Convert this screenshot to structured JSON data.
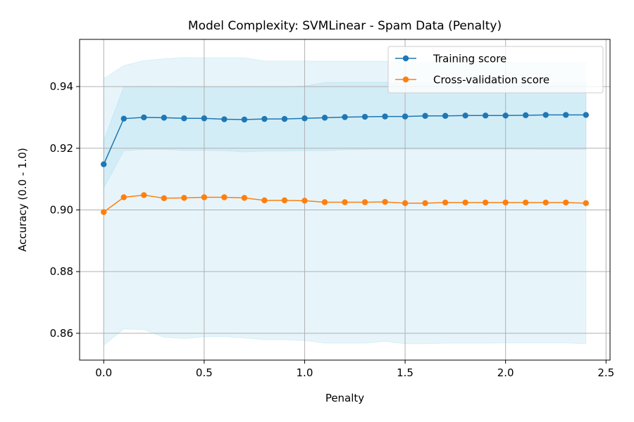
{
  "chart_data": {
    "type": "line",
    "title": "Model Complexity: SVMLinear - Spam Data (Penalty)",
    "xlabel": "Penalty",
    "ylabel": "Accuracy (0.0 - 1.0)",
    "xlim": [
      -0.12,
      2.52
    ],
    "ylim": [
      0.8513,
      0.9553
    ],
    "xticks": [
      0.0,
      0.5,
      1.0,
      1.5,
      2.0,
      2.5
    ],
    "xtick_labels": [
      "0.0",
      "0.5",
      "1.0",
      "1.5",
      "2.0",
      "2.5"
    ],
    "yticks": [
      0.86,
      0.88,
      0.9,
      0.92,
      0.94
    ],
    "ytick_labels": [
      "0.86",
      "0.88",
      "0.90",
      "0.92",
      "0.94"
    ],
    "grid": true,
    "legend_position": "top-right",
    "x": [
      0.0,
      0.1,
      0.2,
      0.3,
      0.4,
      0.5,
      0.6,
      0.7,
      0.8,
      0.9,
      1.0,
      1.1,
      1.2,
      1.3,
      1.4,
      1.5,
      1.6,
      1.7,
      1.8,
      1.9,
      2.0,
      2.1,
      2.2,
      2.3,
      2.4
    ],
    "series": [
      {
        "name": "Training score",
        "color": "#1f77b4",
        "band_color": "#87ceeb",
        "values": [
          0.9148,
          0.9296,
          0.93,
          0.9299,
          0.9297,
          0.9297,
          0.9294,
          0.9293,
          0.9295,
          0.9295,
          0.9297,
          0.9299,
          0.9301,
          0.9302,
          0.9303,
          0.9303,
          0.9305,
          0.9305,
          0.9306,
          0.9306,
          0.9306,
          0.9307,
          0.9308,
          0.9308,
          0.9308
        ],
        "band_upper": [
          0.9224,
          0.94,
          0.9401,
          0.94,
          0.9399,
          0.9398,
          0.9398,
          0.9398,
          0.9399,
          0.9399,
          0.9402,
          0.9413,
          0.9414,
          0.9414,
          0.9414,
          0.9413,
          0.9414,
          0.9414,
          0.9414,
          0.9414,
          0.9412,
          0.9411,
          0.9412,
          0.9412,
          0.9412
        ],
        "band_lower": [
          0.9071,
          0.9192,
          0.9196,
          0.9196,
          0.9193,
          0.9193,
          0.9192,
          0.9188,
          0.9191,
          0.9191,
          0.9192,
          0.9192,
          0.9195,
          0.9196,
          0.9197,
          0.9197,
          0.9197,
          0.9197,
          0.9197,
          0.9197,
          0.9197,
          0.9197,
          0.9196,
          0.9196,
          0.9196
        ]
      },
      {
        "name": "Cross-validation score",
        "color": "#ff7f0e",
        "band_color": "#87ceeb",
        "values": [
          0.8993,
          0.9041,
          0.9048,
          0.9038,
          0.9039,
          0.9041,
          0.9041,
          0.9039,
          0.9031,
          0.9031,
          0.903,
          0.9025,
          0.9025,
          0.9025,
          0.9026,
          0.9022,
          0.9022,
          0.9024,
          0.9024,
          0.9024,
          0.9024,
          0.9024,
          0.9024,
          0.9024,
          0.9022
        ],
        "band_upper": [
          0.9425,
          0.9468,
          0.9484,
          0.949,
          0.9494,
          0.9493,
          0.9493,
          0.9493,
          0.9483,
          0.9483,
          0.9483,
          0.9482,
          0.9482,
          0.9482,
          0.9482,
          0.9478,
          0.9478,
          0.948,
          0.948,
          0.948,
          0.9479,
          0.9479,
          0.9479,
          0.9479,
          0.9478
        ],
        "band_lower": [
          0.8561,
          0.8614,
          0.8612,
          0.8587,
          0.8583,
          0.8589,
          0.8589,
          0.8585,
          0.8579,
          0.8579,
          0.8577,
          0.8568,
          0.8568,
          0.8568,
          0.8574,
          0.8566,
          0.8566,
          0.8568,
          0.8568,
          0.8568,
          0.8569,
          0.8569,
          0.8569,
          0.8569,
          0.8566
        ]
      }
    ]
  }
}
